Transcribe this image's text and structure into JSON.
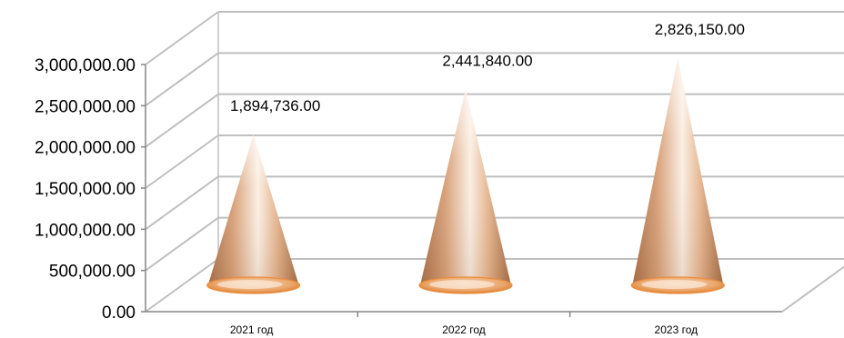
{
  "chart_data": {
    "type": "bar",
    "subtype": "3d-cone",
    "categories": [
      "2021 год",
      "2022 год",
      "2023 год"
    ],
    "values": [
      1894736.0,
      2441840.0,
      2826150.0
    ],
    "data_labels": [
      "1,894,736.00",
      "2,441,840.00",
      "2,826,150.00"
    ],
    "y_ticks": [
      0,
      500000,
      1000000,
      1500000,
      2000000,
      2500000,
      3000000
    ],
    "y_tick_labels": [
      "0.00",
      "500,000.00",
      "1,000,000.00",
      "1,500,000.00",
      "2,000,000.00",
      "2,500,000.00",
      "3,000,000.00"
    ],
    "ylim": [
      0,
      3000000
    ],
    "grid": true,
    "legend": "none",
    "colors": {
      "cone_light": "#fdf3ea",
      "cone_mid": "#e7b892",
      "cone_dark": "#a56e45",
      "cone_base": "#eb8d3e",
      "grid": "#bfbfbf",
      "axis": "#868686"
    }
  }
}
